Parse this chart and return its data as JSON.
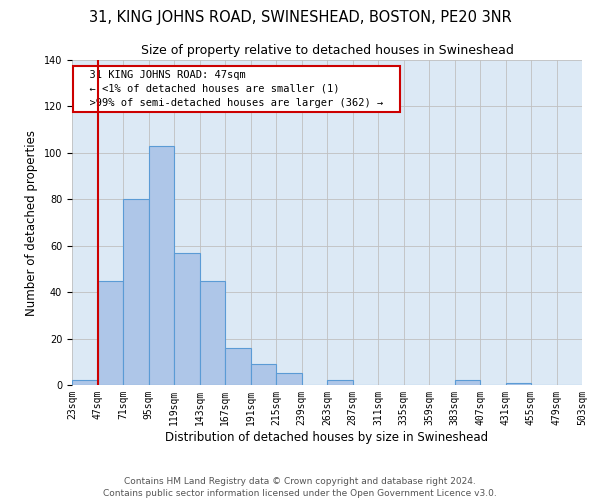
{
  "title": "31, KING JOHNS ROAD, SWINESHEAD, BOSTON, PE20 3NR",
  "subtitle": "Size of property relative to detached houses in Swineshead",
  "xlabel": "Distribution of detached houses by size in Swineshead",
  "ylabel": "Number of detached properties",
  "bin_edges": [
    23,
    47,
    71,
    95,
    119,
    143,
    167,
    191,
    215,
    239,
    263,
    287,
    311,
    335,
    359,
    383,
    407,
    431,
    455,
    479,
    503
  ],
  "bar_heights": [
    2,
    45,
    80,
    103,
    57,
    45,
    16,
    9,
    5,
    0,
    2,
    0,
    0,
    0,
    0,
    2,
    0,
    1,
    0,
    0
  ],
  "bar_color": "#aec6e8",
  "bar_edge_color": "#5b9bd5",
  "red_line_x": 47,
  "annotation_title": "31 KING JOHNS ROAD: 47sqm",
  "annotation_line1": "← <1% of detached houses are smaller (1)",
  "annotation_line2": ">99% of semi-detached houses are larger (362) →",
  "annotation_box_color": "#ffffff",
  "annotation_box_edge": "#cc0000",
  "ylim": [
    0,
    140
  ],
  "yticks": [
    0,
    20,
    40,
    60,
    80,
    100,
    120,
    140
  ],
  "footer_line1": "Contains HM Land Registry data © Crown copyright and database right 2024.",
  "footer_line2": "Contains public sector information licensed under the Open Government Licence v3.0.",
  "title_fontsize": 10.5,
  "subtitle_fontsize": 9,
  "axis_label_fontsize": 8.5,
  "tick_fontsize": 7,
  "annotation_fontsize": 7.5,
  "footer_fontsize": 6.5,
  "bg_color": "#dce9f5"
}
